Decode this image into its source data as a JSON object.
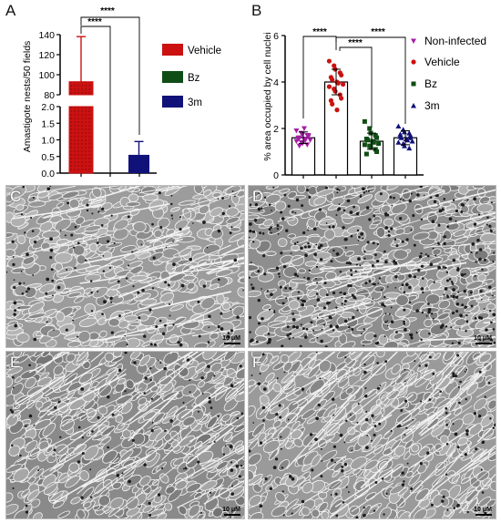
{
  "panels": {
    "A": {
      "letter": "A",
      "ylabel": "Amastigote nests/50 fields",
      "yticks_upper": [
        "140",
        "120",
        "100",
        "80"
      ],
      "yticks_lower": [
        "2.0",
        "1.5",
        "1.0",
        "0.5",
        "0.0"
      ],
      "significance": [
        "****",
        "****"
      ],
      "legend": [
        "Vehicle",
        "Bz",
        "3m"
      ]
    },
    "B": {
      "letter": "B",
      "ylabel": "% area occupied by cell nuclei",
      "yticks": [
        "6",
        "4",
        "2",
        "0"
      ],
      "significance": [
        "****",
        "****",
        "****"
      ],
      "legend": [
        "Non-infected",
        "Vehicle",
        "Bz",
        "3m"
      ]
    },
    "C": {
      "letter": "C",
      "scale": "10 μM"
    },
    "D": {
      "letter": "D",
      "scale": "10 μM"
    },
    "E": {
      "letter": "E",
      "scale": "10 μM"
    },
    "F": {
      "letter": "F",
      "scale": "10 μM"
    }
  },
  "colors": {
    "vehicle": "#cc1111",
    "bz": "#0f4d14",
    "m3": "#11117a",
    "noninfected": "#a51ea5"
  },
  "chart_data": [
    {
      "type": "bar",
      "panel": "A",
      "categories": [
        "Vehicle",
        "Bz",
        "3m"
      ],
      "values": [
        93,
        0,
        0.55
      ],
      "error": [
        45,
        0,
        0.4
      ],
      "ylabel": "Amastigote nests/50 fields",
      "y_axis_segments": [
        [
          0,
          2
        ],
        [
          80,
          140
        ]
      ],
      "legend_position": "right"
    },
    {
      "type": "scatter",
      "panel": "B",
      "categories": [
        "Non-infected",
        "Vehicle",
        "Bz",
        "3m"
      ],
      "ylabel": "% area occupied by cell nuclei",
      "ylim": [
        0,
        6
      ],
      "means": [
        1.6,
        4.0,
        1.45,
        1.6
      ],
      "sd": [
        0.25,
        0.55,
        0.35,
        0.3
      ],
      "series": [
        {
          "name": "Non-infected",
          "values": [
            1.9,
            1.8,
            1.75,
            1.7,
            1.65,
            1.6,
            1.6,
            1.55,
            1.5,
            1.5,
            1.45,
            1.4,
            1.35,
            1.3,
            1.7,
            1.55,
            1.25,
            2.0
          ]
        },
        {
          "name": "Vehicle",
          "values": [
            4.9,
            4.7,
            4.55,
            4.4,
            4.3,
            4.2,
            4.1,
            4.0,
            3.95,
            3.9,
            3.8,
            3.7,
            3.6,
            3.45,
            3.3,
            3.2,
            3.05,
            2.8
          ]
        },
        {
          "name": "Bz",
          "values": [
            2.3,
            2.0,
            1.8,
            1.7,
            1.6,
            1.55,
            1.5,
            1.45,
            1.4,
            1.35,
            1.3,
            1.25,
            1.2,
            1.1,
            1.0,
            0.9
          ]
        },
        {
          "name": "3m",
          "values": [
            2.1,
            1.95,
            1.85,
            1.8,
            1.7,
            1.65,
            1.6,
            1.55,
            1.5,
            1.45,
            1.4,
            1.35,
            1.25,
            1.15,
            1.6,
            1.75
          ]
        }
      ],
      "legend_position": "right"
    }
  ]
}
